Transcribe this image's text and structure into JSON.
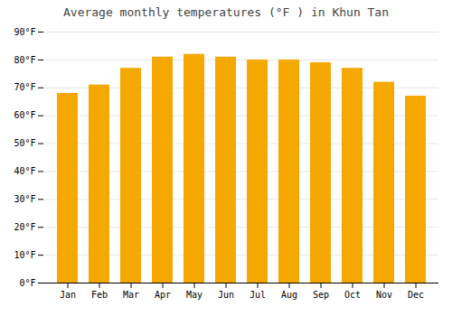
{
  "chart_data": {
    "type": "bar",
    "title": "Average monthly temperatures (°F ) in Khun Tan",
    "categories": [
      "Jan",
      "Feb",
      "Mar",
      "Apr",
      "May",
      "Jun",
      "Jul",
      "Aug",
      "Sep",
      "Oct",
      "Nov",
      "Dec"
    ],
    "values": [
      68,
      71,
      77,
      81,
      82,
      81,
      80,
      80,
      79,
      77,
      72,
      67
    ],
    "color": "#F5A800",
    "ylim": [
      0,
      90
    ],
    "yticks": [
      {
        "value": 0,
        "label": "0°F"
      },
      {
        "value": 10,
        "label": "10°F"
      },
      {
        "value": 20,
        "label": "20°F"
      },
      {
        "value": 30,
        "label": "30°F"
      },
      {
        "value": 40,
        "label": "40°F"
      },
      {
        "value": 50,
        "label": "50°F"
      },
      {
        "value": 60,
        "label": "60°F"
      },
      {
        "value": 70,
        "label": "70°F"
      },
      {
        "value": 80,
        "label": "80°F"
      },
      {
        "value": 90,
        "label": "90°F"
      }
    ],
    "grid": true
  }
}
